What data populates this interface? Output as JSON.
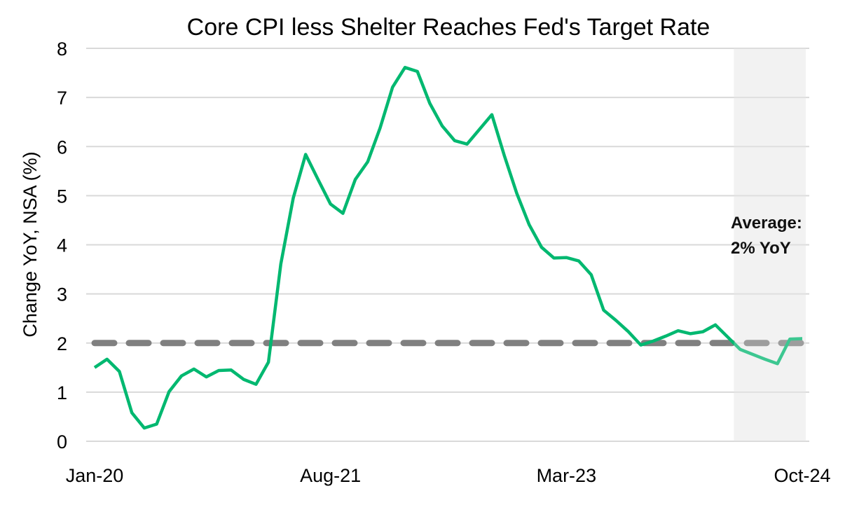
{
  "chart_data": {
    "type": "line",
    "title": "Core CPI less Shelter Reaches Fed's Target Rate",
    "xlabel": "",
    "ylabel": "Change YoY, NSA (%)",
    "ylim": [
      0,
      8
    ],
    "yticks": [
      "0",
      "1",
      "2",
      "3",
      "4",
      "5",
      "6",
      "7",
      "8"
    ],
    "xticks": [
      {
        "label": "Jan-20",
        "month": "2020-01"
      },
      {
        "label": "Aug-21",
        "month": "2021-08"
      },
      {
        "label": "Mar-23",
        "month": "2023-03"
      },
      {
        "label": "Oct-24",
        "month": "2024-10"
      }
    ],
    "grid": true,
    "x_start": "2020-01",
    "x_end": "2024-10",
    "series": [
      {
        "color": "#00b870",
        "values": [
          1.5,
          1.67,
          1.42,
          0.58,
          0.27,
          0.35,
          1.01,
          1.33,
          1.47,
          1.31,
          1.44,
          1.45,
          1.26,
          1.16,
          1.61,
          3.61,
          4.95,
          5.84,
          5.33,
          4.83,
          4.64,
          5.33,
          5.69,
          6.38,
          7.21,
          7.61,
          7.53,
          6.88,
          6.42,
          6.12,
          6.05,
          6.35,
          6.65,
          5.82,
          5.05,
          4.41,
          3.95,
          3.73,
          3.74,
          3.67,
          3.39,
          2.67,
          2.46,
          2.23,
          1.96,
          2.04,
          2.14,
          2.25,
          2.19,
          2.23,
          2.37,
          2.12,
          1.87,
          1.77,
          1.67,
          1.58,
          2.08,
          2.09
        ]
      }
    ],
    "reference_line": {
      "value": 2,
      "color": "#808080",
      "style": "dashed"
    },
    "shaded_region": {
      "start": "2024-05",
      "end": "2024-10",
      "color": "#f2f2f2"
    },
    "annotation": {
      "lines": [
        "Average:",
        "2% YoY"
      ]
    }
  }
}
